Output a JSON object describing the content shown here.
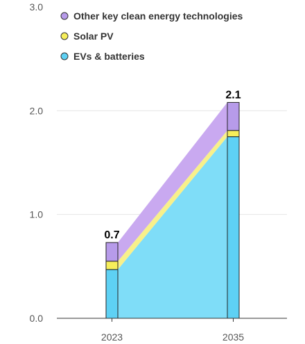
{
  "chart_data": {
    "type": "bar",
    "categories": [
      "2023",
      "2035"
    ],
    "series": [
      {
        "name": "EVs & batteries",
        "values": [
          0.47,
          1.75
        ],
        "color": "#5ED1F4",
        "area_color": "#7FDDF8"
      },
      {
        "name": "Solar PV",
        "values": [
          0.08,
          0.06
        ],
        "color": "#F6EE5A",
        "area_color": "#F8F08A"
      },
      {
        "name": "Other key clean energy technologies",
        "values": [
          0.18,
          0.27
        ],
        "color": "#B79BEA",
        "area_color": "#C9A9F0"
      }
    ],
    "totals": [
      "0.7",
      "2.1"
    ],
    "y_ticks": [
      "0.0",
      "1.0",
      "2.0",
      "3.0"
    ],
    "ylim": [
      0,
      3
    ],
    "legend": [
      {
        "label": "Other key clean energy technologies",
        "color": "#B79BEA"
      },
      {
        "label": "Solar PV",
        "color": "#F6EE5A"
      },
      {
        "label": "EVs & batteries",
        "color": "#5ED1F4"
      }
    ],
    "legend_position": "top-left",
    "grid": true,
    "title": "",
    "xlabel": "",
    "ylabel": ""
  }
}
